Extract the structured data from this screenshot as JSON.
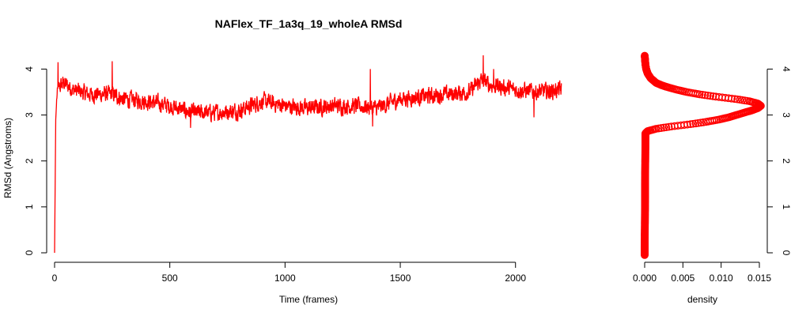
{
  "chart_data": [
    {
      "type": "line",
      "title": "NAFlex_TF_1a3q_19_wholeA RMSd",
      "xlabel": "Time (frames)",
      "ylabel": "RMSd (Angstroms)",
      "xlim": [
        0,
        2200
      ],
      "ylim": [
        0,
        4.3
      ],
      "x_ticks": [
        0,
        500,
        1000,
        1500,
        2000
      ],
      "y_ticks": [
        0,
        1,
        2,
        3,
        4
      ],
      "series_color": "#ff0000",
      "n_frames": 2200,
      "trend": {
        "x": [
          0,
          5,
          10,
          20,
          40,
          80,
          150,
          250,
          300,
          400,
          500,
          600,
          700,
          800,
          900,
          1000,
          1100,
          1200,
          1300,
          1400,
          1500,
          1600,
          1700,
          1800,
          1850,
          1900,
          2000,
          2100,
          2200
        ],
        "y": [
          0.0,
          2.9,
          3.4,
          3.6,
          3.7,
          3.55,
          3.45,
          3.45,
          3.35,
          3.3,
          3.2,
          3.05,
          3.05,
          3.1,
          3.3,
          3.2,
          3.15,
          3.2,
          3.2,
          3.15,
          3.35,
          3.4,
          3.45,
          3.5,
          3.75,
          3.65,
          3.55,
          3.5,
          3.55
        ]
      },
      "noise_amplitude": 0.15,
      "spikes": [
        {
          "x": 15,
          "y": 4.15
        },
        {
          "x": 250,
          "y": 4.17
        },
        {
          "x": 1370,
          "y": 4.0
        },
        {
          "x": 1380,
          "y": 2.75
        },
        {
          "x": 1860,
          "y": 4.3
        },
        {
          "x": 1905,
          "y": 4.0
        },
        {
          "x": 2080,
          "y": 2.95
        },
        {
          "x": 590,
          "y": 2.72
        }
      ]
    },
    {
      "type": "scatter",
      "title": "",
      "xlabel": "density",
      "ylabel": "",
      "xlim": [
        0,
        0.015
      ],
      "ylim": [
        0,
        4.3
      ],
      "x_ticks": [
        0.0,
        0.005,
        0.01,
        0.015
      ],
      "x_tick_labels": [
        "0.000",
        "0.005",
        "0.010",
        "0.015"
      ],
      "y_ticks": [
        0,
        1,
        2,
        3,
        4
      ],
      "y_axis_side": "right",
      "series_color": "#ff0000",
      "density_curve": {
        "y": [
          -0.05,
          2.6,
          2.65,
          2.7,
          2.75,
          2.8,
          2.85,
          2.9,
          2.95,
          3.0,
          3.05,
          3.1,
          3.15,
          3.2,
          3.25,
          3.3,
          3.35,
          3.4,
          3.45,
          3.5,
          3.55,
          3.6,
          3.65,
          3.7,
          3.8,
          3.9,
          4.0,
          4.1,
          4.2,
          4.3
        ],
        "x": [
          0.0,
          0.0001,
          0.0004,
          0.0015,
          0.0035,
          0.006,
          0.008,
          0.0097,
          0.011,
          0.012,
          0.013,
          0.014,
          0.0148,
          0.0152,
          0.0148,
          0.0137,
          0.0118,
          0.0093,
          0.0072,
          0.0055,
          0.0042,
          0.0031,
          0.0022,
          0.0015,
          0.0008,
          0.0004,
          0.0002,
          0.0001,
          5e-05,
          0.0
        ]
      }
    }
  ]
}
